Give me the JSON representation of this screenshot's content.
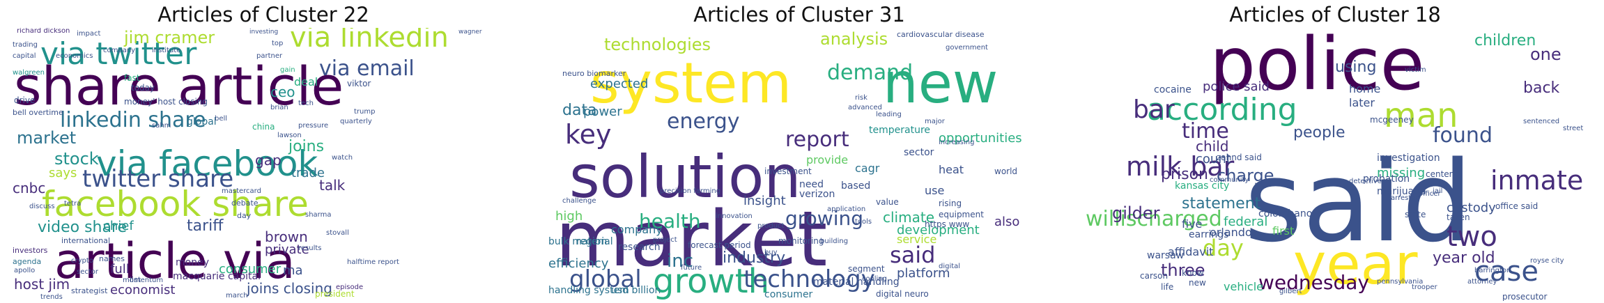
{
  "palette": [
    "#440154",
    "#472d7b",
    "#3b528b",
    "#2c728e",
    "#21918c",
    "#28ae80",
    "#5ec962",
    "#addc30",
    "#fde725"
  ],
  "panels": [
    {
      "title": "Articles of Cluster 22",
      "words": [
        {
          "text": "share article",
          "c": 0
        },
        {
          "text": "article via",
          "c": 0
        },
        {
          "text": "via facebook",
          "c": 4
        },
        {
          "text": "facebook share",
          "c": 7
        },
        {
          "text": "via twitter",
          "c": 4
        },
        {
          "text": "via linkedin",
          "c": 7
        },
        {
          "text": "linkedin share",
          "c": 3
        },
        {
          "text": "twitter share",
          "c": 2
        },
        {
          "text": "via email",
          "c": 2
        },
        {
          "text": "jim cramer",
          "c": 7
        },
        {
          "text": "market",
          "c": 3
        },
        {
          "text": "stock",
          "c": 4
        },
        {
          "text": "video share",
          "c": 4
        },
        {
          "text": "tariff",
          "c": 2
        },
        {
          "text": "cnbc",
          "c": 1
        },
        {
          "text": "host jim",
          "c": 1
        },
        {
          "text": "economist",
          "c": 1
        },
        {
          "text": "joins closing",
          "c": 2
        },
        {
          "text": "ceo",
          "c": 4
        },
        {
          "text": "joins",
          "c": 5
        },
        {
          "text": "talk",
          "c": 1
        },
        {
          "text": "trade",
          "c": 3
        },
        {
          "text": "brown",
          "c": 1
        },
        {
          "text": "private",
          "c": 1
        },
        {
          "text": "consumer",
          "c": 5
        },
        {
          "text": "money",
          "c": 1
        },
        {
          "text": "says",
          "c": 7
        },
        {
          "text": "chief",
          "c": 4
        },
        {
          "text": "full",
          "c": 1
        },
        {
          "text": "macquarie capital",
          "c": 1
        },
        {
          "text": "gap",
          "c": 1
        },
        {
          "text": "global",
          "c": 3
        },
        {
          "text": "deal",
          "c": 5
        },
        {
          "text": "ma",
          "c": 2
        },
        {
          "text": "richard dickson",
          "c": 1
        },
        {
          "text": "walgreen",
          "c": 4
        },
        {
          "text": "trading",
          "c": 2
        },
        {
          "text": "impact",
          "c": 2
        },
        {
          "text": "company",
          "c": 2
        },
        {
          "text": "institute",
          "c": 2
        },
        {
          "text": "money' host closing",
          "c": 2
        },
        {
          "text": "bell overtime",
          "c": 2
        },
        {
          "text": "investors",
          "c": 1
        },
        {
          "text": "agenda",
          "c": 3
        },
        {
          "text": "international",
          "c": 2
        },
        {
          "text": "apollo",
          "c": 2
        },
        {
          "text": "sector",
          "c": 2
        },
        {
          "text": "momentum",
          "c": 2
        },
        {
          "text": "results",
          "c": 2
        },
        {
          "text": "president",
          "c": 7
        },
        {
          "text": "strategist",
          "c": 2
        },
        {
          "text": "trends",
          "c": 2
        },
        {
          "text": "episode",
          "c": 1
        },
        {
          "text": "halftime report",
          "c": 2
        },
        {
          "text": "stovall",
          "c": 2
        },
        {
          "text": "sharma",
          "c": 2
        },
        {
          "text": "pressure",
          "c": 2
        },
        {
          "text": "quarterly",
          "c": 2
        },
        {
          "text": "watch",
          "c": 2
        },
        {
          "text": "lawson",
          "c": 2
        },
        {
          "text": "mastercard",
          "c": 2
        },
        {
          "text": "bell",
          "c": 2
        },
        {
          "text": "discuss",
          "c": 2
        },
        {
          "text": "tetra",
          "c": 2
        },
        {
          "text": "capital",
          "c": 2
        },
        {
          "text": "economics",
          "c": 2
        },
        {
          "text": "investing",
          "c": 2
        },
        {
          "text": "wagner",
          "c": 2
        },
        {
          "text": "viktor",
          "c": 2
        },
        {
          "text": "china",
          "c": 5
        },
        {
          "text": "today",
          "c": 2
        },
        {
          "text": "fast",
          "c": 5
        },
        {
          "text": "drive",
          "c": 2
        },
        {
          "text": "sahm",
          "c": 2
        },
        {
          "text": "crypto",
          "c": 2
        },
        {
          "text": "debate",
          "c": 2
        },
        {
          "text": "day",
          "c": 2
        },
        {
          "text": "list",
          "c": 2
        },
        {
          "text": "names",
          "c": 2
        },
        {
          "text": "march",
          "c": 2
        },
        {
          "text": "tech",
          "c": 2
        },
        {
          "text": "trump",
          "c": 2
        },
        {
          "text": "brian",
          "c": 2
        },
        {
          "text": "gain",
          "c": 5
        },
        {
          "text": "partner",
          "c": 2
        },
        {
          "text": "top",
          "c": 2
        }
      ]
    },
    {
      "title": "Articles of Cluster 31",
      "words": [
        {
          "text": "market",
          "c": 1
        },
        {
          "text": "solution",
          "c": 1
        },
        {
          "text": "system",
          "c": 8
        },
        {
          "text": "new",
          "c": 5
        },
        {
          "text": "growth",
          "c": 5
        },
        {
          "text": "global",
          "c": 2
        },
        {
          "text": "technology",
          "c": 2
        },
        {
          "text": "key",
          "c": 1
        },
        {
          "text": "energy",
          "c": 2
        },
        {
          "text": "report",
          "c": 1
        },
        {
          "text": "demand",
          "c": 5
        },
        {
          "text": "analysis",
          "c": 7
        },
        {
          "text": "technologies",
          "c": 7
        },
        {
          "text": "health",
          "c": 5
        },
        {
          "text": "said",
          "c": 1
        },
        {
          "text": "growing",
          "c": 2
        },
        {
          "text": "climate",
          "c": 5
        },
        {
          "text": "inc",
          "c": 3
        },
        {
          "text": "industry",
          "c": 2
        },
        {
          "text": "data",
          "c": 3
        },
        {
          "text": "power",
          "c": 3
        },
        {
          "text": "development",
          "c": 5
        },
        {
          "text": "platform",
          "c": 2
        },
        {
          "text": "service",
          "c": 7
        },
        {
          "text": "efficiency",
          "c": 3
        },
        {
          "text": "handling system",
          "c": 3
        },
        {
          "text": "insight",
          "c": 2
        },
        {
          "text": "company",
          "c": 3
        },
        {
          "text": "opportunities",
          "c": 5
        },
        {
          "text": "also",
          "c": 1
        },
        {
          "text": "expected",
          "c": 3
        },
        {
          "text": "provide",
          "c": 6
        },
        {
          "text": "need",
          "c": 2
        },
        {
          "text": "based",
          "c": 2
        },
        {
          "text": "use",
          "c": 2
        },
        {
          "text": "heat",
          "c": 2
        },
        {
          "text": "sector",
          "c": 2
        },
        {
          "text": "cagr",
          "c": 3
        },
        {
          "text": "investment",
          "c": 2
        },
        {
          "text": "verizon",
          "c": 2
        },
        {
          "text": "research",
          "c": 2
        },
        {
          "text": "usd billion",
          "c": 3
        },
        {
          "text": "material handling",
          "c": 2
        },
        {
          "text": "consumer",
          "c": 3
        },
        {
          "text": "segment",
          "c": 2
        },
        {
          "text": "digital neuro",
          "c": 2
        },
        {
          "text": "high",
          "c": 6
        },
        {
          "text": "bulk material",
          "c": 3
        },
        {
          "text": "region",
          "c": 3
        },
        {
          "text": "temperature",
          "c": 4
        },
        {
          "text": "world",
          "c": 2
        },
        {
          "text": "rising",
          "c": 2
        },
        {
          "text": "value",
          "c": 2
        },
        {
          "text": "https www",
          "c": 2
        },
        {
          "text": "equipment",
          "c": 2
        },
        {
          "text": "monitoring",
          "c": 2
        },
        {
          "text": "forecast period",
          "c": 2
        },
        {
          "text": "neuro biomarker",
          "c": 2
        },
        {
          "text": "application",
          "c": 2
        },
        {
          "text": "cardiovascular disease",
          "c": 2
        },
        {
          "text": "increasing",
          "c": 2
        },
        {
          "text": "leading",
          "c": 2
        },
        {
          "text": "advanced",
          "c": 2
        },
        {
          "text": "risk",
          "c": 2
        },
        {
          "text": "product",
          "c": 2
        },
        {
          "text": "building",
          "c": 2
        },
        {
          "text": "innovation",
          "c": 2
        },
        {
          "text": "buy",
          "c": 2
        },
        {
          "text": "future",
          "c": 2
        },
        {
          "text": "digital",
          "c": 2
        },
        {
          "text": "tools",
          "c": 2
        },
        {
          "text": "cooling",
          "c": 2
        },
        {
          "text": "major",
          "c": 2
        },
        {
          "text": "government",
          "c": 2
        },
        {
          "text": "precision farming",
          "c": 2
        },
        {
          "text": "challenge",
          "c": 2
        },
        {
          "text": "project",
          "c": 2
        }
      ]
    },
    {
      "title": "Articles of Cluster 18",
      "words": [
        {
          "text": "said",
          "c": 2
        },
        {
          "text": "police",
          "c": 0
        },
        {
          "text": "year",
          "c": 8
        },
        {
          "text": "according",
          "c": 5
        },
        {
          "text": "man",
          "c": 7
        },
        {
          "text": "bar",
          "c": 1
        },
        {
          "text": "milk bar",
          "c": 1
        },
        {
          "text": "willischarged",
          "c": 6
        },
        {
          "text": "two",
          "c": 1
        },
        {
          "text": "case",
          "c": 2
        },
        {
          "text": "inmate",
          "c": 1
        },
        {
          "text": "found",
          "c": 2
        },
        {
          "text": "time",
          "c": 1
        },
        {
          "text": "day",
          "c": 7
        },
        {
          "text": "gilder",
          "c": 1
        },
        {
          "text": "charge",
          "c": 2
        },
        {
          "text": "wednesday",
          "c": 0
        },
        {
          "text": "three",
          "c": 1
        },
        {
          "text": "statement",
          "c": 3
        },
        {
          "text": "prison",
          "c": 1
        },
        {
          "text": "children",
          "c": 5
        },
        {
          "text": "one",
          "c": 1
        },
        {
          "text": "back",
          "c": 1
        },
        {
          "text": "people",
          "c": 2
        },
        {
          "text": "using",
          "c": 2
        },
        {
          "text": "police said",
          "c": 1
        },
        {
          "text": "child",
          "c": 1
        },
        {
          "text": "count",
          "c": 2
        },
        {
          "text": "year old",
          "c": 1
        },
        {
          "text": "missing",
          "c": 5
        },
        {
          "text": "custody",
          "c": 2
        },
        {
          "text": "federal",
          "c": 5
        },
        {
          "text": "five",
          "c": 2
        },
        {
          "text": "orlando",
          "c": 2
        },
        {
          "text": "kansas city",
          "c": 5
        },
        {
          "text": "first",
          "c": 6
        },
        {
          "text": "home",
          "c": 2
        },
        {
          "text": "later",
          "c": 2
        },
        {
          "text": "zahnd said",
          "c": 2
        },
        {
          "text": "affidavit",
          "c": 2
        },
        {
          "text": "vehicle",
          "c": 5
        },
        {
          "text": "warsaw",
          "c": 2
        },
        {
          "text": "cocaine",
          "c": 2
        },
        {
          "text": "probation",
          "c": 2
        },
        {
          "text": "investigation",
          "c": 2
        },
        {
          "text": "marijuana",
          "c": 2
        },
        {
          "text": "earrings",
          "c": 2
        },
        {
          "text": "colombano",
          "c": 2
        },
        {
          "text": "taken",
          "c": 2
        },
        {
          "text": "center",
          "c": 2
        },
        {
          "text": "state",
          "c": 2
        },
        {
          "text": "mcgeeney",
          "c": 2
        },
        {
          "text": "office said",
          "c": 2
        },
        {
          "text": "officer",
          "c": 2
        },
        {
          "text": "arrested",
          "c": 2
        },
        {
          "text": "prosecutor",
          "c": 2
        },
        {
          "text": "detective",
          "c": 2
        },
        {
          "text": "know",
          "c": 2
        },
        {
          "text": "carson",
          "c": 2
        },
        {
          "text": "new",
          "c": 2
        },
        {
          "text": "life",
          "c": 2
        },
        {
          "text": "community",
          "c": 2
        },
        {
          "text": "victim",
          "c": 2
        },
        {
          "text": "street",
          "c": 2
        },
        {
          "text": "sentenced",
          "c": 2
        },
        {
          "text": "jail",
          "c": 2
        },
        {
          "text": "pennsylvania",
          "c": 2
        },
        {
          "text": "gilbert",
          "c": 2
        },
        {
          "text": "attorney",
          "c": 2
        },
        {
          "text": "harrington",
          "c": 2
        },
        {
          "text": "trooper",
          "c": 2
        },
        {
          "text": "royse city",
          "c": 2
        }
      ]
    }
  ]
}
